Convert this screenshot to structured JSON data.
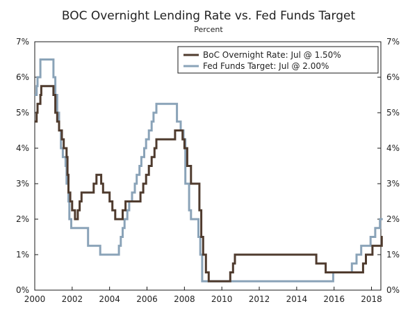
{
  "chart_data": {
    "type": "line",
    "title": "BOC Overnight Lending Rate vs. Fed Funds Target",
    "subtitle": "Percent",
    "xlabel": "",
    "ylabel": "",
    "xlim": [
      2000,
      2018.5
    ],
    "ylim": [
      0,
      7
    ],
    "grid": false,
    "legend_position": "top-right",
    "x_ticks": [
      2000,
      2002,
      2004,
      2006,
      2008,
      2010,
      2012,
      2014,
      2016,
      2018
    ],
    "x_tick_labels": [
      "2000",
      "2002",
      "2004",
      "2006",
      "2008",
      "2010",
      "2012",
      "2014",
      "2016",
      "2018"
    ],
    "y_ticks": [
      0,
      1,
      2,
      3,
      4,
      5,
      6,
      7
    ],
    "y_tick_labels_left": [
      "0%",
      "1%",
      "2%",
      "3%",
      "4%",
      "5%",
      "6%",
      "7%"
    ],
    "y_tick_labels_right": [
      "0%",
      "1%",
      "2%",
      "3%",
      "4%",
      "5%",
      "6%",
      "7%"
    ],
    "series": [
      {
        "name": "Fed Funds Target: Jul @ 2.00%",
        "legend_label": "Fed Funds Target: Jul @ 2.00%",
        "color": "#8aa3b8",
        "points": [
          [
            2000.0,
            5.5
          ],
          [
            2000.1,
            5.75
          ],
          [
            2000.15,
            6.0
          ],
          [
            2000.3,
            6.5
          ],
          [
            2000.95,
            6.5
          ],
          [
            2001.0,
            6.0
          ],
          [
            2001.1,
            5.5
          ],
          [
            2001.2,
            5.0
          ],
          [
            2001.3,
            4.5
          ],
          [
            2001.4,
            4.0
          ],
          [
            2001.5,
            3.75
          ],
          [
            2001.65,
            3.5
          ],
          [
            2001.7,
            3.0
          ],
          [
            2001.8,
            2.5
          ],
          [
            2001.85,
            2.0
          ],
          [
            2001.95,
            1.75
          ],
          [
            2002.85,
            1.25
          ],
          [
            2003.5,
            1.0
          ],
          [
            2004.5,
            1.25
          ],
          [
            2004.6,
            1.5
          ],
          [
            2004.7,
            1.75
          ],
          [
            2004.8,
            2.0
          ],
          [
            2004.95,
            2.25
          ],
          [
            2005.05,
            2.5
          ],
          [
            2005.2,
            2.75
          ],
          [
            2005.35,
            3.0
          ],
          [
            2005.45,
            3.25
          ],
          [
            2005.6,
            3.5
          ],
          [
            2005.7,
            3.75
          ],
          [
            2005.85,
            4.0
          ],
          [
            2005.95,
            4.25
          ],
          [
            2006.1,
            4.5
          ],
          [
            2006.25,
            4.75
          ],
          [
            2006.35,
            5.0
          ],
          [
            2006.5,
            5.25
          ],
          [
            2007.6,
            4.75
          ],
          [
            2007.8,
            4.5
          ],
          [
            2007.95,
            4.25
          ],
          [
            2008.05,
            3.0
          ],
          [
            2008.25,
            2.25
          ],
          [
            2008.35,
            2.0
          ],
          [
            2008.75,
            1.5
          ],
          [
            2008.85,
            1.0
          ],
          [
            2008.95,
            0.25
          ],
          [
            2015.95,
            0.5
          ],
          [
            2016.95,
            0.75
          ],
          [
            2017.2,
            1.0
          ],
          [
            2017.45,
            1.25
          ],
          [
            2017.95,
            1.5
          ],
          [
            2018.2,
            1.75
          ],
          [
            2018.45,
            2.0
          ],
          [
            2018.6,
            2.0
          ]
        ]
      },
      {
        "name": "BoC Overnight Rate: Jul @ 1.50%",
        "legend_label": "BoC Overnight Rate: Jul @ 1.50%",
        "color": "#4f3b2e",
        "points": [
          [
            2000.0,
            4.75
          ],
          [
            2000.1,
            5.0
          ],
          [
            2000.15,
            5.25
          ],
          [
            2000.3,
            5.5
          ],
          [
            2000.35,
            5.75
          ],
          [
            2001.0,
            5.5
          ],
          [
            2001.1,
            5.0
          ],
          [
            2001.2,
            4.75
          ],
          [
            2001.3,
            4.5
          ],
          [
            2001.45,
            4.25
          ],
          [
            2001.55,
            4.0
          ],
          [
            2001.7,
            3.75
          ],
          [
            2001.75,
            3.25
          ],
          [
            2001.8,
            2.75
          ],
          [
            2001.9,
            2.5
          ],
          [
            2002.0,
            2.25
          ],
          [
            2002.15,
            2.0
          ],
          [
            2002.3,
            2.25
          ],
          [
            2002.4,
            2.5
          ],
          [
            2002.5,
            2.75
          ],
          [
            2003.15,
            3.0
          ],
          [
            2003.3,
            3.25
          ],
          [
            2003.55,
            3.0
          ],
          [
            2003.65,
            2.75
          ],
          [
            2004.0,
            2.5
          ],
          [
            2004.15,
            2.25
          ],
          [
            2004.3,
            2.0
          ],
          [
            2004.7,
            2.25
          ],
          [
            2004.85,
            2.5
          ],
          [
            2005.65,
            2.75
          ],
          [
            2005.8,
            3.0
          ],
          [
            2005.95,
            3.25
          ],
          [
            2006.1,
            3.5
          ],
          [
            2006.25,
            3.75
          ],
          [
            2006.4,
            4.0
          ],
          [
            2006.5,
            4.25
          ],
          [
            2007.5,
            4.5
          ],
          [
            2007.9,
            4.25
          ],
          [
            2008.0,
            4.0
          ],
          [
            2008.15,
            3.5
          ],
          [
            2008.35,
            3.0
          ],
          [
            2008.8,
            2.25
          ],
          [
            2008.9,
            1.5
          ],
          [
            2009.0,
            1.0
          ],
          [
            2009.15,
            0.5
          ],
          [
            2009.3,
            0.25
          ],
          [
            2010.45,
            0.5
          ],
          [
            2010.6,
            0.75
          ],
          [
            2010.7,
            1.0
          ],
          [
            2015.05,
            0.75
          ],
          [
            2015.55,
            0.5
          ],
          [
            2017.55,
            0.75
          ],
          [
            2017.7,
            1.0
          ],
          [
            2018.05,
            1.25
          ],
          [
            2018.55,
            1.5
          ],
          [
            2018.6,
            1.5
          ]
        ]
      }
    ]
  }
}
